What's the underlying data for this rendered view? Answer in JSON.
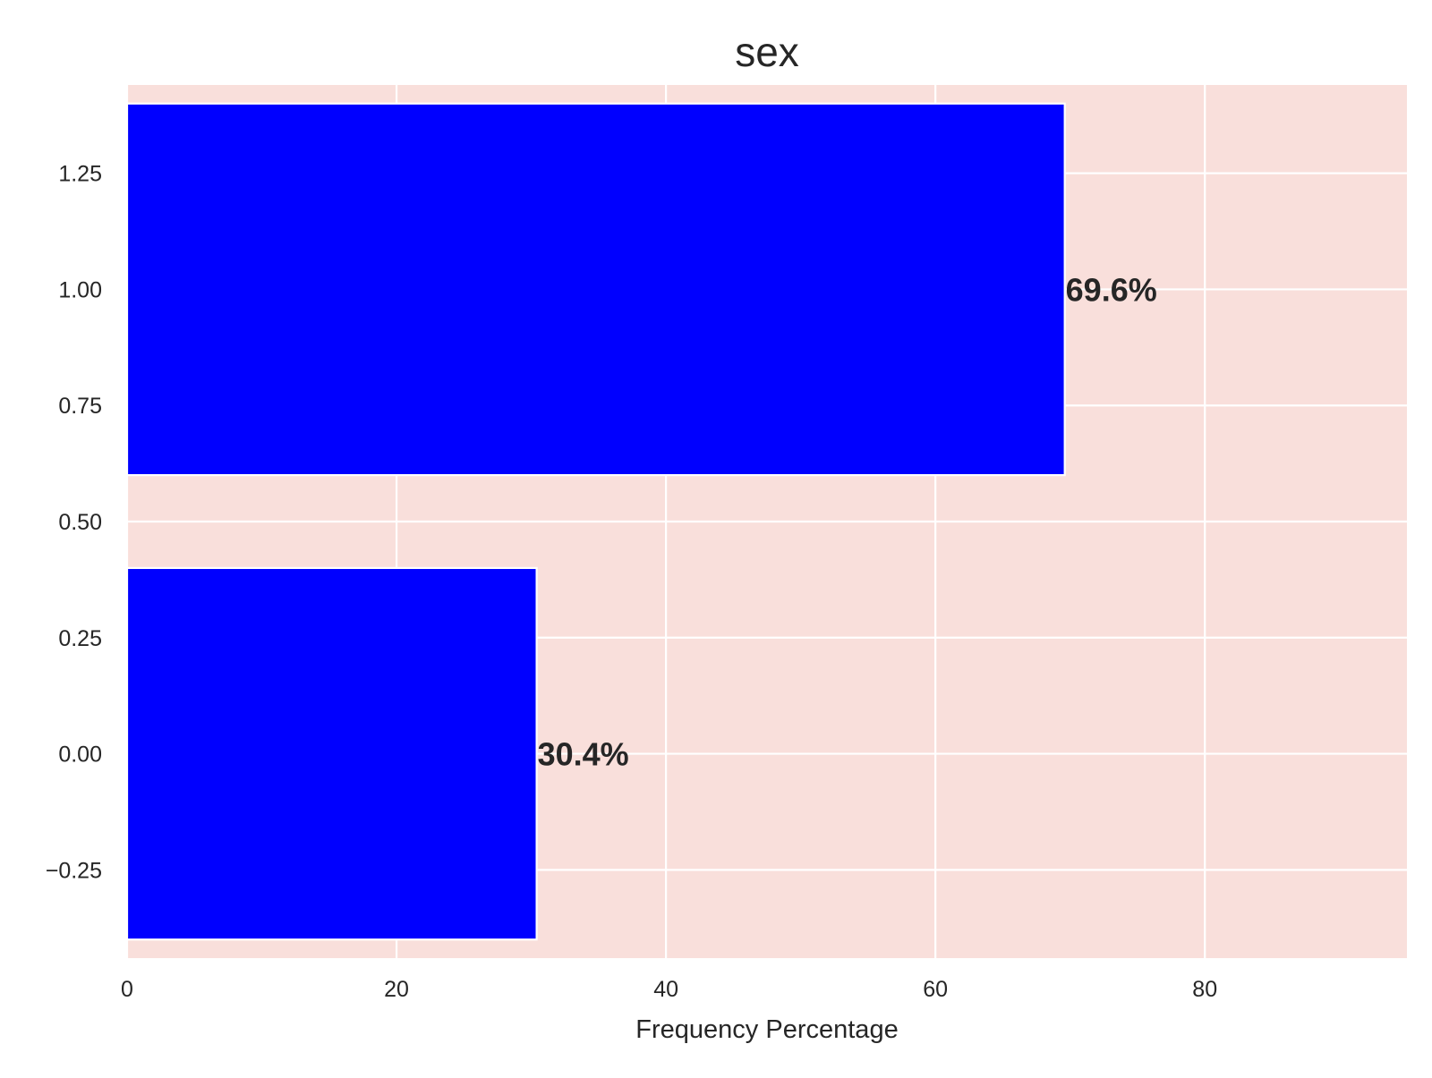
{
  "chart_data": {
    "type": "bar",
    "orientation": "horizontal",
    "title": "sex",
    "xlabel": "Frequency Percentage",
    "ylabel": "",
    "categories": [
      0,
      1
    ],
    "values": [
      30.4,
      69.6
    ],
    "data_labels": [
      "30.4%",
      "69.6%"
    ],
    "bar_width": 0.8,
    "xlim": [
      0,
      95
    ],
    "ylim": [
      -0.44,
      1.44
    ],
    "x_ticks": [
      0,
      20,
      40,
      60,
      80
    ],
    "x_tick_labels": [
      "0",
      "20",
      "40",
      "60",
      "80"
    ],
    "y_ticks": [
      -0.25,
      0.0,
      0.25,
      0.5,
      0.75,
      1.0,
      1.25
    ],
    "y_tick_labels": [
      "−0.25",
      "0.00",
      "0.25",
      "0.50",
      "0.75",
      "1.00",
      "1.25"
    ],
    "grid": true,
    "colors": {
      "bar": "#0000ff",
      "plot_background": "#f9dfdb",
      "grid": "#ffffff",
      "text": "#262626"
    }
  }
}
